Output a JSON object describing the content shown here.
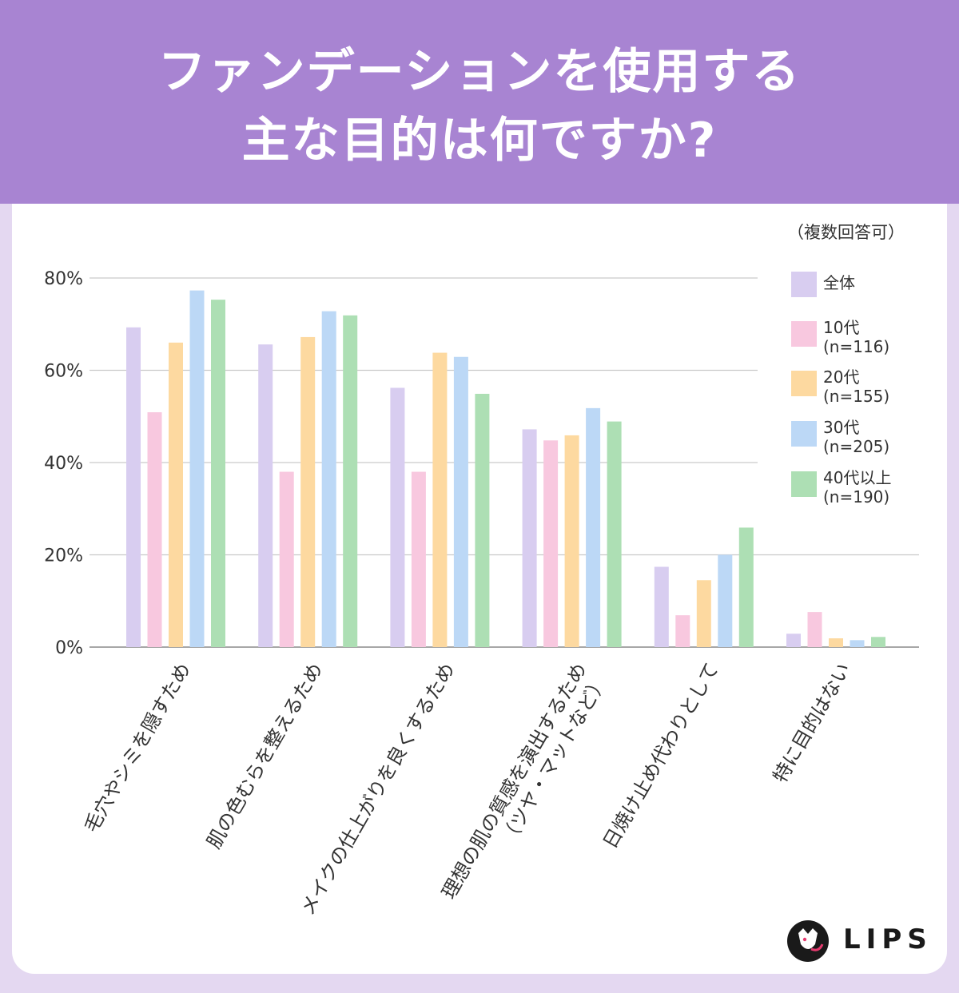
{
  "header": {
    "title_line1": "ファンデーションを使用する",
    "title_line2": "主な目的は何ですか?"
  },
  "note": "（複数回答可）",
  "legend": [
    {
      "label": "全体",
      "n": "",
      "color": "#d8cdf0"
    },
    {
      "label": "10代",
      "n": "(n=116)",
      "color": "#f8c8df"
    },
    {
      "label": "20代",
      "n": "(n=155)",
      "color": "#fdd9a0"
    },
    {
      "label": "30代",
      "n": "(n=205)",
      "color": "#bcd8f6"
    },
    {
      "label": "40代以上",
      "n": "(n=190)",
      "color": "#addfb4"
    }
  ],
  "logo": {
    "text": "LIPS"
  },
  "chart_data": {
    "type": "bar",
    "title": "ファンデーションを使用する主な目的は何ですか?",
    "ylim": [
      0,
      80
    ],
    "yticks": [
      0,
      20,
      40,
      60,
      80
    ],
    "ytick_labels": [
      "0%",
      "20%",
      "40%",
      "60%",
      "80%"
    ],
    "grid": true,
    "legend_position": "right",
    "categories": [
      [
        "毛穴やシミを隠すため"
      ],
      [
        "肌の色むらを整えるため"
      ],
      [
        "メイクの仕上がりを良くするため"
      ],
      [
        "理想の肌の質感を演出するため",
        "（ツヤ・マットなど）"
      ],
      [
        "日焼け止め代わりとして"
      ],
      [
        "特に目的はない"
      ]
    ],
    "series": [
      {
        "name": "全体",
        "color": "#d8cdf0",
        "values": [
          69.3,
          65.6,
          56.2,
          47.2,
          17.4,
          2.9
        ]
      },
      {
        "name": "10代",
        "color": "#f8c8df",
        "values": [
          50.9,
          38.0,
          38.0,
          44.8,
          6.9,
          7.6
        ]
      },
      {
        "name": "20代",
        "color": "#fdd9a0",
        "values": [
          66.0,
          67.2,
          63.8,
          45.9,
          14.5,
          1.9
        ]
      },
      {
        "name": "30代",
        "color": "#bcd8f6",
        "values": [
          77.3,
          72.8,
          62.9,
          51.8,
          20.0,
          1.5
        ]
      },
      {
        "name": "40代以上",
        "color": "#addfb4",
        "values": [
          75.3,
          71.9,
          54.9,
          48.9,
          25.9,
          2.2
        ]
      }
    ]
  }
}
